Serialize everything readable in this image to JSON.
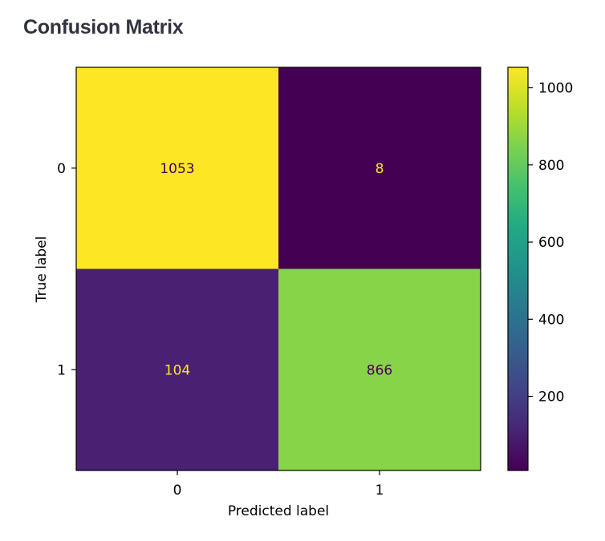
{
  "page": {
    "title": "Confusion Matrix"
  },
  "chart_data": {
    "type": "heatmap",
    "title": "Confusion Matrix",
    "xlabel": "Predicted label",
    "ylabel": "True label",
    "x_categories": [
      "0",
      "1"
    ],
    "y_categories": [
      "0",
      "1"
    ],
    "matrix": [
      [
        1053,
        8
      ],
      [
        104,
        866
      ]
    ],
    "colormap": "viridis",
    "colorbar": {
      "range": [
        8,
        1053
      ],
      "ticks": [
        200,
        400,
        600,
        800,
        1000
      ],
      "tick_labels": [
        "200",
        "400",
        "600",
        "800",
        "1000"
      ]
    },
    "text_colors": {
      "dark": "#440154",
      "light": "#fde725"
    }
  }
}
